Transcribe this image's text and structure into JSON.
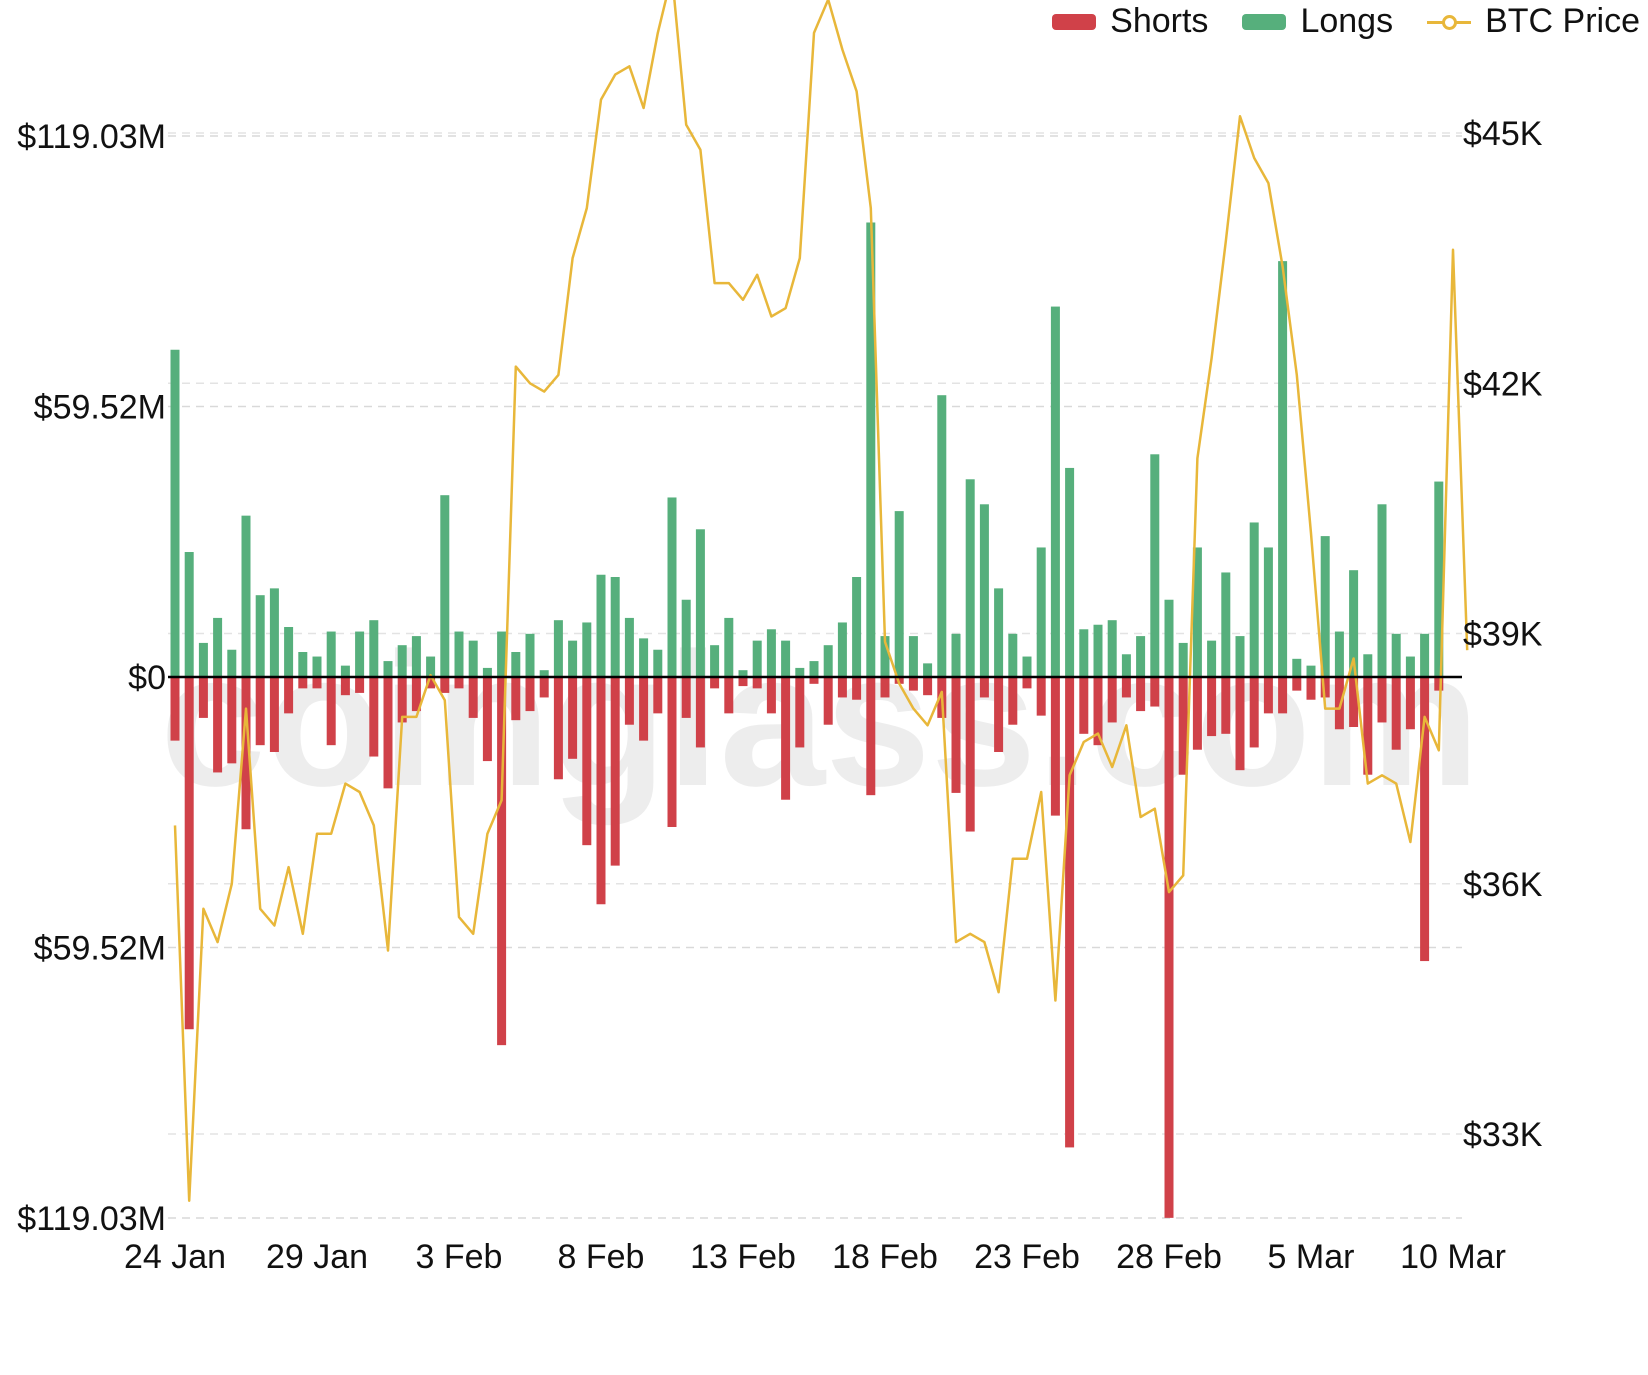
{
  "legend": [
    {
      "name": "Shorts",
      "color": "#d04149",
      "kind": "rect"
    },
    {
      "name": "Longs",
      "color": "#56af7c",
      "kind": "rect"
    },
    {
      "name": "BTC Price",
      "color": "#e8b73a",
      "kind": "line"
    }
  ],
  "watermark": "coinglass.com",
  "chart_data": {
    "type": "bar",
    "stacked": "diverging",
    "grid": true,
    "legend_position": "top-right",
    "left_axis": {
      "ticks": [
        {
          "value": 119.03,
          "label": "$119.03M"
        },
        {
          "value": 59.52,
          "label": "$59.52M"
        },
        {
          "value": 0,
          "label": "$0"
        },
        {
          "value": -59.52,
          "label": "$59.52M"
        },
        {
          "value": -119.03,
          "label": "$119.03M"
        }
      ],
      "range": [
        -119.03,
        119.03
      ],
      "unit": "million USD"
    },
    "right_axis": {
      "ticks": [
        {
          "value": 45000,
          "label": "$45K"
        },
        {
          "value": 42000,
          "label": "$42K"
        },
        {
          "value": 39000,
          "label": "$39K"
        },
        {
          "value": 36000,
          "label": "$36K"
        },
        {
          "value": 33000,
          "label": "$33K"
        }
      ],
      "range": [
        32000,
        45000
      ],
      "unit": "USD"
    },
    "x_axis": {
      "ticks": [
        {
          "index": 0,
          "label": "24 Jan"
        },
        {
          "index": 10,
          "label": "29 Jan"
        },
        {
          "index": 20,
          "label": "3 Feb"
        },
        {
          "index": 30,
          "label": "8 Feb"
        },
        {
          "index": 40,
          "label": "13 Feb"
        },
        {
          "index": 50,
          "label": "18 Feb"
        },
        {
          "index": 60,
          "label": "23 Feb"
        },
        {
          "index": 70,
          "label": "28 Feb"
        },
        {
          "index": 80,
          "label": "5 Mar"
        },
        {
          "index": 90,
          "label": "10 Mar"
        }
      ]
    },
    "series": [
      {
        "name": "Longs",
        "color": "#56af7c",
        "values": [
          72.0,
          27.5,
          7.5,
          13.0,
          6.0,
          35.5,
          18.0,
          19.5,
          11.0,
          5.5,
          4.5,
          10.0,
          2.5,
          10.0,
          12.5,
          3.5,
          7.0,
          9.0,
          4.5,
          40.0,
          10.0,
          8.0,
          2.0,
          10.0,
          5.5,
          9.5,
          1.5,
          12.5,
          8.0,
          12.0,
          22.5,
          22.0,
          13.0,
          8.5,
          6.0,
          39.5,
          17.0,
          32.5,
          7.0,
          13.0,
          1.5,
          8.0,
          10.5,
          8.0,
          2.0,
          3.5,
          7.0,
          12.0,
          22.0,
          100.0,
          9.0,
          36.5,
          9.0,
          3.0,
          62.0,
          9.5,
          43.5,
          38.0,
          19.5,
          9.5,
          4.5,
          28.5,
          81.5,
          46.0,
          10.5,
          11.5,
          12.5,
          5.0,
          9.0,
          49.0,
          17.0,
          7.5,
          28.5,
          8.0,
          23.0,
          9.0,
          34.0,
          28.5,
          91.5,
          4.0,
          2.5,
          31.0,
          10.0,
          23.5,
          5.0,
          38.0,
          9.5,
          4.5,
          9.5,
          43.0
        ]
      },
      {
        "name": "Shorts",
        "color": "#d04149",
        "values": [
          14.0,
          77.5,
          9.0,
          21.0,
          19.0,
          33.5,
          15.0,
          16.5,
          8.0,
          2.5,
          2.5,
          15.0,
          4.0,
          3.5,
          17.5,
          24.5,
          10.0,
          7.5,
          2.5,
          3.5,
          2.5,
          9.0,
          18.5,
          81.0,
          9.5,
          7.5,
          4.5,
          22.5,
          18.0,
          37.0,
          50.0,
          41.5,
          10.5,
          14.0,
          8.0,
          33.0,
          9.0,
          15.5,
          2.5,
          8.0,
          2.0,
          2.5,
          8.0,
          27.0,
          15.5,
          1.5,
          10.5,
          4.5,
          5.0,
          26.0,
          4.5,
          1.5,
          3.0,
          4.0,
          9.0,
          25.5,
          34.0,
          4.5,
          16.5,
          10.5,
          2.5,
          8.5,
          30.5,
          103.5,
          12.5,
          15.0,
          10.0,
          4.5,
          7.5,
          6.5,
          119.0,
          21.5,
          16.0,
          13.0,
          12.5,
          20.5,
          15.5,
          8.0,
          8.0,
          3.0,
          5.0,
          4.5,
          11.5,
          11.0,
          21.5,
          10.0,
          16.0,
          11.5,
          62.5,
          3.0
        ]
      },
      {
        "name": "BTC Price",
        "color": "#e8b73a",
        "values": [
          36.7,
          32.2,
          35.7,
          35.3,
          36.0,
          38.1,
          35.7,
          35.5,
          36.2,
          35.4,
          36.6,
          36.6,
          37.2,
          37.1,
          36.7,
          35.2,
          38.0,
          38.0,
          38.5,
          38.2,
          35.6,
          35.4,
          36.6,
          37.0,
          42.2,
          42.0,
          41.9,
          42.1,
          43.5,
          44.1,
          45.4,
          45.7,
          45.8,
          45.3,
          46.2,
          46.9,
          45.1,
          44.8,
          43.2,
          43.2,
          43.0,
          43.3,
          42.8,
          42.9,
          43.5,
          46.2,
          46.6,
          46.0,
          45.5,
          44.1,
          38.9,
          38.4,
          38.1,
          37.9,
          38.3,
          35.3,
          35.4,
          35.3,
          34.7,
          36.3,
          36.3,
          37.1,
          34.6,
          37.3,
          37.7,
          37.8,
          37.4,
          37.9,
          36.8,
          36.9,
          35.9,
          36.1,
          41.1,
          42.3,
          43.7,
          45.2,
          44.7,
          44.4,
          43.4,
          42.1,
          40.2,
          38.1,
          38.1,
          38.7,
          37.2,
          37.3,
          37.2,
          36.5,
          38.0,
          37.6,
          43.6,
          38.8
        ]
      }
    ]
  }
}
